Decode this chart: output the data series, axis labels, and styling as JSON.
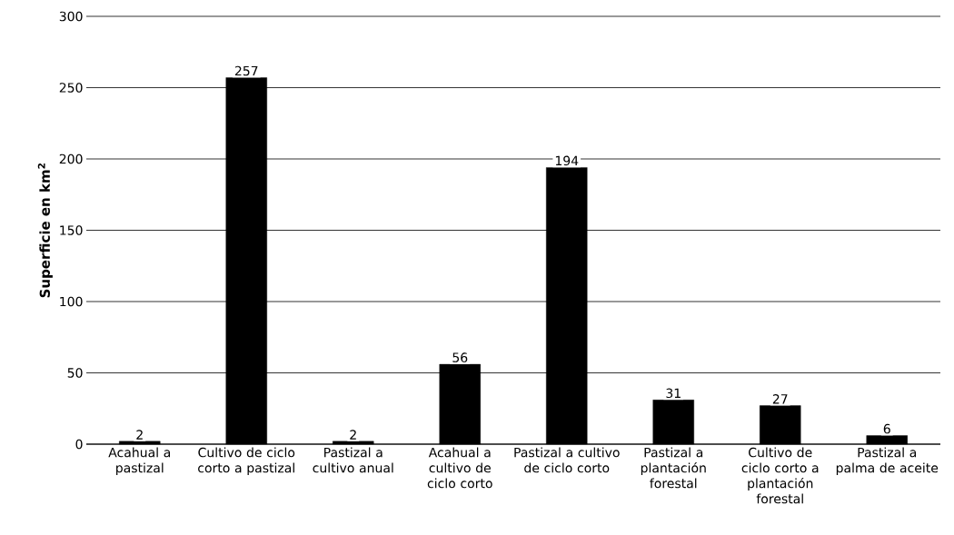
{
  "chart_data": {
    "type": "bar",
    "ylabel": "Superficie en km$^{2}$",
    "categories": [
      "Acahual a pastizal",
      "Cultivo de ciclo corto a pastizal",
      "Pastizal a cultivo anual",
      "Acahual a cultivo de ciclo corto",
      "Pastizal a cultivo de ciclo corto",
      "Pastizal a plantación forestal",
      "Cultivo de ciclo corto a plantación forestal",
      "Pastizal a palma de aceite"
    ],
    "values": [
      2,
      257,
      2,
      56,
      194,
      31,
      27,
      6
    ],
    "color": "#000000",
    "ylim": [
      0,
      300
    ],
    "yticks": [
      0,
      50,
      100,
      150,
      200,
      250,
      300
    ],
    "grid": "y",
    "data_labels": true
  }
}
